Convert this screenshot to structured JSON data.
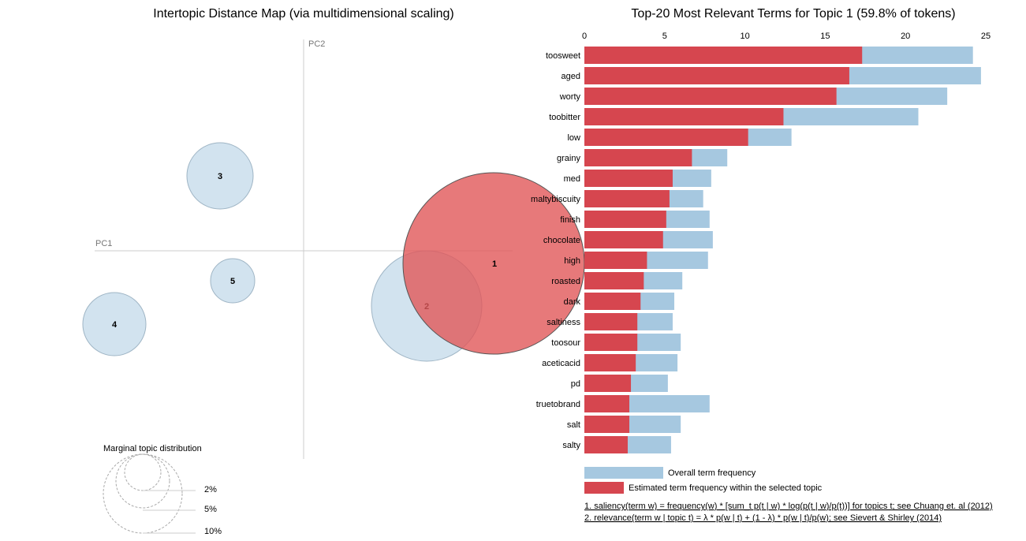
{
  "left_panel": {
    "title": "Intertopic Distance Map (via multidimensional scaling)",
    "pc1_label": "PC1",
    "pc2_label": "PC2",
    "topics": [
      {
        "id": "1",
        "label": "1",
        "selected": true,
        "color": "#e15759"
      },
      {
        "id": "2",
        "label": "2",
        "selected": false,
        "color": "#a6c8e0"
      },
      {
        "id": "3",
        "label": "3",
        "selected": false,
        "color": "#a6c8e0"
      },
      {
        "id": "4",
        "label": "4",
        "selected": false,
        "color": "#a6c8e0"
      },
      {
        "id": "5",
        "label": "5",
        "selected": false,
        "color": "#a6c8e0"
      }
    ],
    "marginal": {
      "title": "Marginal topic distribution",
      "labels": [
        "2%",
        "5%",
        "10%"
      ]
    }
  },
  "chart_data": {
    "type": "bar",
    "title": "Top-20 Most Relevant Terms for Topic 1 (59.8% of tokens)",
    "orientation": "horizontal",
    "xlim": [
      0,
      25
    ],
    "xticks": [
      "0",
      "5",
      "10",
      "15",
      "20",
      "25"
    ],
    "categories": [
      "toosweet",
      "aged",
      "worty",
      "toobitter",
      "low",
      "grainy",
      "med",
      "maltybiscuity",
      "finish",
      "chocolate",
      "high",
      "roasted",
      "dark",
      "saltiness",
      "toosour",
      "aceticacid",
      "pd",
      "truetobrand",
      "salt",
      "salty"
    ],
    "series": [
      {
        "name": "Overall term frequency",
        "color": "#a6c8e0",
        "values": [
          24.2,
          24.7,
          22.6,
          20.8,
          12.9,
          8.9,
          7.9,
          7.4,
          7.8,
          8.0,
          7.7,
          6.1,
          5.6,
          5.5,
          6.0,
          5.8,
          5.2,
          7.8,
          6.0,
          5.4
        ]
      },
      {
        "name": "Estimated term frequency within the selected topic",
        "color": "#d6464f",
        "values": [
          17.3,
          16.5,
          15.7,
          12.4,
          10.2,
          6.7,
          5.5,
          5.3,
          5.1,
          4.9,
          3.9,
          3.7,
          3.5,
          3.3,
          3.3,
          3.2,
          2.9,
          2.8,
          2.8,
          2.7
        ]
      }
    ],
    "legend_position": "bottom"
  },
  "notes": [
    "1. saliency(term w) = frequency(w) * [sum_t p(t | w) * log(p(t | w)/p(t))] for topics t; see Chuang et. al (2012)",
    "2. relevance(term w | topic t) = λ * p(w | t) + (1 - λ) * p(w | t)/p(w); see Sievert & Shirley (2014)"
  ]
}
